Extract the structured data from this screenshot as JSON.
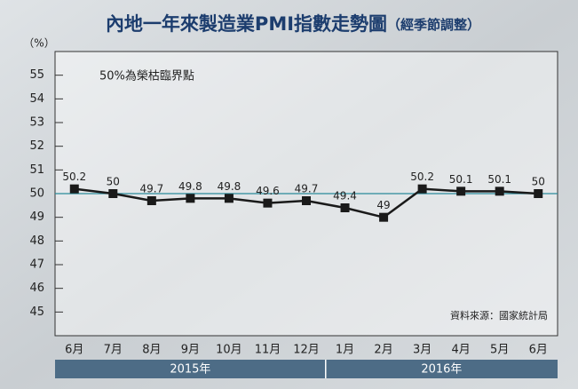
{
  "chart_data": {
    "type": "line",
    "title": "內地一年來製造業PMI指數走勢圖",
    "subtitle": "（經季節調整）",
    "y_label": "（%）",
    "annotation": "50%為榮枯臨界點",
    "source": "資料來源：國家統計局",
    "categories": [
      "6月",
      "7月",
      "8月",
      "9月",
      "10月",
      "11月",
      "12月",
      "1月",
      "2月",
      "3月",
      "4月",
      "5月",
      "6月"
    ],
    "values": [
      50.2,
      50,
      49.7,
      49.8,
      49.8,
      49.6,
      49.7,
      49.4,
      49,
      50.2,
      50.1,
      50.1,
      50
    ],
    "color": "#1a1a1a",
    "reference_line": {
      "value": 50,
      "color": "#2a8a9a"
    },
    "year_groups": [
      {
        "label": "2015年",
        "span": 7
      },
      {
        "label": "2016年",
        "span": 6
      }
    ],
    "ylim": [
      44,
      56
    ],
    "yticks": [
      45,
      46,
      47,
      48,
      49,
      50,
      51,
      52,
      53,
      54,
      55
    ]
  }
}
